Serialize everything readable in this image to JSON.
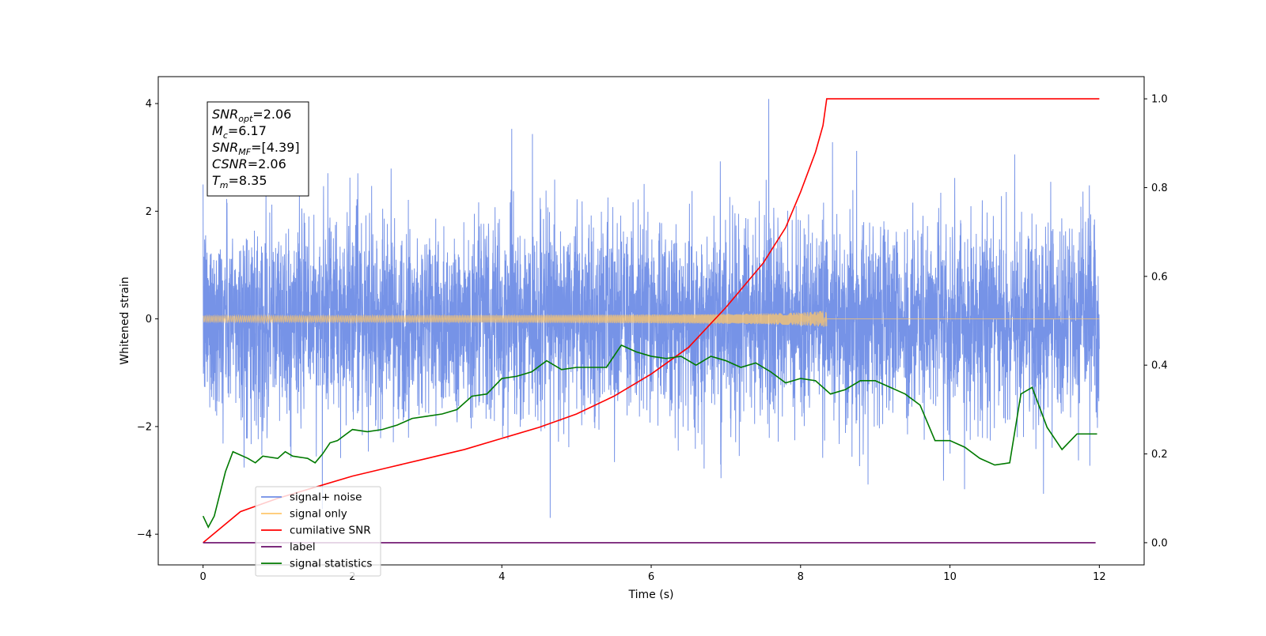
{
  "chart_data": {
    "type": "line",
    "xlabel": "Time (s)",
    "ylabel": "Whitened strain",
    "xlim": [
      -0.6,
      12.6
    ],
    "ylim": [
      -4.57,
      4.5
    ],
    "y2lim": [
      -0.05,
      1.05
    ],
    "grid": false,
    "legend_placement": "lower-left",
    "x_ticks": [
      "0",
      "2",
      "4",
      "6",
      "8",
      "10",
      "12"
    ],
    "y_ticks": [
      "−4",
      "−2",
      "0",
      "2",
      "4"
    ],
    "y2_ticks": [
      "0.0",
      "0.2",
      "0.4",
      "0.6",
      "0.8",
      "1.0"
    ],
    "info_box": [
      {
        "base": "SNR",
        "sub": "opt",
        "text": "=2.06"
      },
      {
        "base": "M",
        "sub": "c",
        "text": "=6.17"
      },
      {
        "base": "SNR",
        "sub": "MF",
        "text": "=[4.39]"
      },
      {
        "base": "CSNR",
        "sub": "",
        "text": "=2.06"
      },
      {
        "base": "T",
        "sub": "m",
        "text": "=8.35"
      }
    ],
    "series": [
      {
        "name": "signal+ noise",
        "color": "#6f8de6",
        "axis": "left",
        "kind": "noise",
        "t_start": 0,
        "t_end": 12,
        "std": 1.0
      },
      {
        "name": "signal only",
        "color": "#ffc76b",
        "axis": "left",
        "kind": "chirp",
        "t_start": 0,
        "t_end": 8.35,
        "amplitude_end": 0.2
      },
      {
        "name": "cumilative SNR",
        "color": "#ff0000",
        "axis": "right",
        "x": [
          0,
          0.5,
          1,
          1.5,
          2,
          2.5,
          3,
          3.5,
          4,
          4.5,
          5,
          5.5,
          6,
          6.5,
          7,
          7.5,
          7.8,
          8.0,
          8.2,
          8.3,
          8.35,
          12
        ],
        "y": [
          0.0,
          0.07,
          0.1,
          0.125,
          0.15,
          0.17,
          0.19,
          0.21,
          0.235,
          0.26,
          0.29,
          0.33,
          0.38,
          0.44,
          0.53,
          0.63,
          0.71,
          0.79,
          0.88,
          0.94,
          1.0,
          1.0
        ]
      },
      {
        "name": "label",
        "color": "#6a0b6a",
        "axis": "right",
        "x": [
          0,
          11.95
        ],
        "y": [
          0,
          0
        ]
      },
      {
        "name": "signal statistics",
        "color": "#007a00",
        "axis": "right",
        "x": [
          0,
          0.07,
          0.15,
          0.3,
          0.4,
          0.6,
          0.7,
          0.8,
          1.0,
          1.1,
          1.2,
          1.4,
          1.5,
          1.6,
          1.7,
          1.8,
          2.0,
          2.2,
          2.4,
          2.6,
          2.8,
          3.0,
          3.2,
          3.4,
          3.6,
          3.8,
          4.0,
          4.2,
          4.4,
          4.6,
          4.8,
          5.0,
          5.2,
          5.4,
          5.6,
          5.8,
          6.0,
          6.2,
          6.4,
          6.6,
          6.8,
          7.0,
          7.2,
          7.4,
          7.6,
          7.8,
          8.0,
          8.2,
          8.4,
          8.6,
          8.8,
          9.0,
          9.2,
          9.4,
          9.6,
          9.8,
          10.0,
          10.2,
          10.4,
          10.6,
          10.8,
          10.95,
          11.1,
          11.3,
          11.5,
          11.7,
          11.97
        ],
        "y": [
          0.06,
          0.035,
          0.06,
          0.16,
          0.205,
          0.19,
          0.18,
          0.195,
          0.19,
          0.205,
          0.195,
          0.19,
          0.18,
          0.2,
          0.225,
          0.23,
          0.255,
          0.25,
          0.255,
          0.265,
          0.28,
          0.285,
          0.29,
          0.3,
          0.33,
          0.335,
          0.37,
          0.375,
          0.385,
          0.41,
          0.39,
          0.395,
          0.395,
          0.395,
          0.445,
          0.43,
          0.42,
          0.415,
          0.42,
          0.4,
          0.42,
          0.41,
          0.395,
          0.405,
          0.385,
          0.36,
          0.37,
          0.365,
          0.335,
          0.345,
          0.365,
          0.365,
          0.35,
          0.335,
          0.31,
          0.23,
          0.23,
          0.215,
          0.19,
          0.175,
          0.18,
          0.335,
          0.35,
          0.26,
          0.21,
          0.245,
          0.245
        ]
      }
    ]
  }
}
